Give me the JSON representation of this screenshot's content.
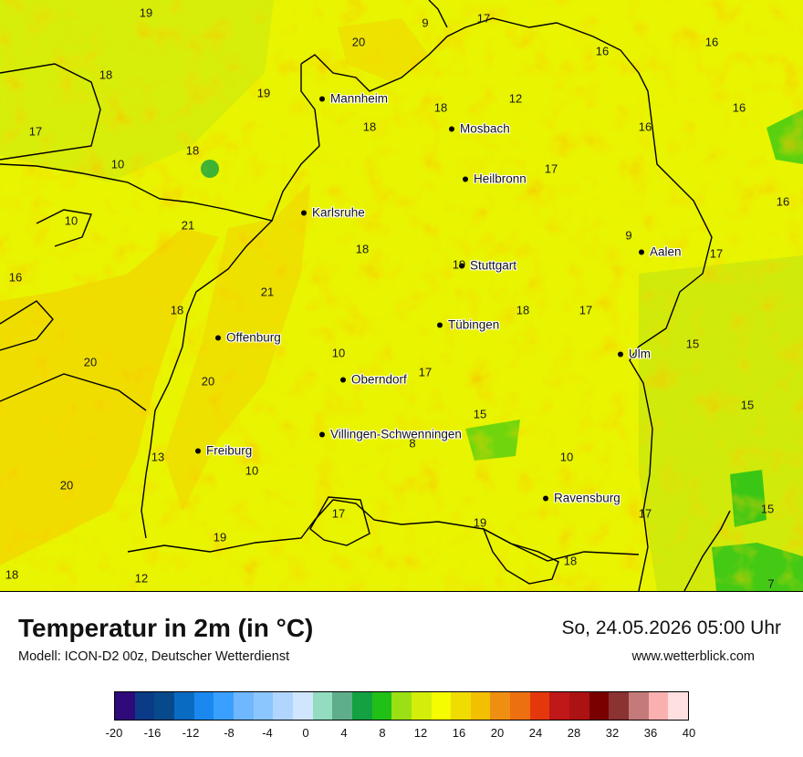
{
  "map": {
    "cities": [
      {
        "name": "Mannheim"
      },
      {
        "name": "Mosbach"
      },
      {
        "name": "Heilbronn"
      },
      {
        "name": "Karlsruhe"
      },
      {
        "name": "Stuttgart"
      },
      {
        "name": "Aalen"
      },
      {
        "name": "Tübingen"
      },
      {
        "name": "Offenburg"
      },
      {
        "name": "Oberndorf"
      },
      {
        "name": "Ulm"
      },
      {
        "name": "Villingen-Schwenningen"
      },
      {
        "name": "Freiburg"
      },
      {
        "name": "Ravensburg"
      }
    ],
    "values": [
      "19",
      "9",
      "17",
      "20",
      "16",
      "16",
      "18",
      "19",
      "12",
      "18",
      "18",
      "16",
      "16",
      "17",
      "10",
      "18",
      "17",
      "10",
      "21",
      "16",
      "9",
      "18",
      "17",
      "16",
      "19",
      "18",
      "17",
      "21",
      "18",
      "20",
      "10",
      "17",
      "15",
      "20",
      "15",
      "15",
      "13",
      "8",
      "10",
      "10",
      "20",
      "15",
      "17",
      "17",
      "19",
      "19",
      "18",
      "18",
      "12",
      "7"
    ]
  },
  "footer": {
    "title": "Temperatur in 2m (in °C)",
    "subtitle": "Modell: ICON-D2 00z, Deutscher Wetterdienst",
    "datetime": "So, 24.05.2026 05:00 Uhr",
    "website": "www.wetterblick.com"
  },
  "legend": {
    "colors": [
      "#2e0a7a",
      "#0b3a86",
      "#064a8c",
      "#0a6bc2",
      "#1a88ef",
      "#3aa0ff",
      "#6fb8ff",
      "#8cc6ff",
      "#b0d6ff",
      "#d0e6ff",
      "#93dcbf",
      "#5fae8a",
      "#13a142",
      "#20c016",
      "#9be014",
      "#d4ee0c",
      "#f5fb00",
      "#f0dc00",
      "#f2c000",
      "#ee8f12",
      "#ec7010",
      "#e4380c",
      "#c01818",
      "#ac1212",
      "#7a0000",
      "#8b3232",
      "#c47a7a",
      "#fbb0b0",
      "#fee0e0"
    ],
    "ticks": [
      "-20",
      "-16",
      "-12",
      "-8",
      "-4",
      "0",
      "4",
      "8",
      "12",
      "16",
      "20",
      "24",
      "28",
      "32",
      "36",
      "40"
    ]
  }
}
